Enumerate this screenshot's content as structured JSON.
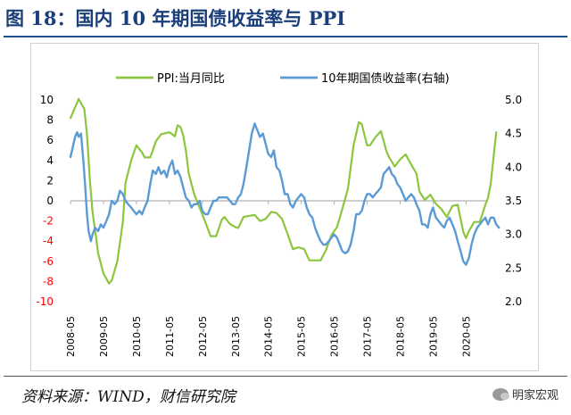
{
  "header": {
    "title": "图 18：国内 10 年期国债收益率与 PPI"
  },
  "footer": {
    "source": "资料来源：WIND，财信研究院",
    "watermark": "明家宏观"
  },
  "chart_data": {
    "type": "line",
    "title": "图 18：国内 10 年期国债收益率与 PPI",
    "legend_position": "top",
    "x_range": [
      2008.33,
      2021.0
    ],
    "x_ticks": [
      "2008-05",
      "2009-05",
      "2010-05",
      "2011-05",
      "2012-05",
      "2013-05",
      "2014-05",
      "2015-05",
      "2016-05",
      "2017-05",
      "2018-05",
      "2019-05",
      "2020-05"
    ],
    "y_left": {
      "range": [
        -10,
        10
      ],
      "ticks": [
        "10",
        "8",
        "6",
        "4",
        "2",
        "0",
        "-2",
        "-4",
        "-6",
        "-8",
        "-10"
      ]
    },
    "y_right": {
      "range": [
        2.0,
        5.0
      ],
      "ticks": [
        "5.0",
        "4.5",
        "4.0",
        "3.5",
        "3.0",
        "2.5",
        "2.0"
      ]
    },
    "colors": {
      "ppi": "#8cc63f",
      "yield": "#5b9bd5",
      "negative_tick": "#ff0000",
      "zero_line": "#b0b0b0"
    },
    "series": [
      {
        "name": "PPI:当月同比",
        "axis": "left",
        "points": [
          [
            2008.33,
            8.2
          ],
          [
            2008.5,
            9.5
          ],
          [
            2008.58,
            10.1
          ],
          [
            2008.75,
            9.1
          ],
          [
            2008.83,
            6.6
          ],
          [
            2008.92,
            2.0
          ],
          [
            2009.0,
            -1.1
          ],
          [
            2009.08,
            -3.0
          ],
          [
            2009.17,
            -5.2
          ],
          [
            2009.33,
            -7.2
          ],
          [
            2009.5,
            -8.2
          ],
          [
            2009.58,
            -7.9
          ],
          [
            2009.75,
            -6.0
          ],
          [
            2009.92,
            -2.1
          ],
          [
            2010.0,
            1.8
          ],
          [
            2010.17,
            4.0
          ],
          [
            2010.33,
            5.5
          ],
          [
            2010.5,
            4.8
          ],
          [
            2010.58,
            4.3
          ],
          [
            2010.75,
            4.3
          ],
          [
            2010.83,
            5.0
          ],
          [
            2010.92,
            5.9
          ],
          [
            2011.08,
            6.6
          ],
          [
            2011.33,
            6.8
          ],
          [
            2011.5,
            6.4
          ],
          [
            2011.58,
            7.5
          ],
          [
            2011.67,
            7.3
          ],
          [
            2011.75,
            6.5
          ],
          [
            2011.83,
            5.0
          ],
          [
            2011.92,
            2.7
          ],
          [
            2012.08,
            0.7
          ],
          [
            2012.25,
            -0.7
          ],
          [
            2012.42,
            -2.1
          ],
          [
            2012.58,
            -3.5
          ],
          [
            2012.75,
            -3.5
          ],
          [
            2012.92,
            -1.9
          ],
          [
            2013.0,
            -1.6
          ],
          [
            2013.17,
            -2.3
          ],
          [
            2013.33,
            -2.6
          ],
          [
            2013.42,
            -2.7
          ],
          [
            2013.58,
            -1.6
          ],
          [
            2013.75,
            -1.5
          ],
          [
            2013.92,
            -1.4
          ],
          [
            2014.08,
            -2.0
          ],
          [
            2014.25,
            -1.8
          ],
          [
            2014.42,
            -1.1
          ],
          [
            2014.58,
            -1.2
          ],
          [
            2014.75,
            -1.8
          ],
          [
            2014.92,
            -3.3
          ],
          [
            2015.08,
            -4.8
          ],
          [
            2015.25,
            -4.6
          ],
          [
            2015.42,
            -4.8
          ],
          [
            2015.58,
            -5.9
          ],
          [
            2015.75,
            -5.9
          ],
          [
            2015.92,
            -5.9
          ],
          [
            2016.08,
            -4.9
          ],
          [
            2016.25,
            -3.4
          ],
          [
            2016.42,
            -2.6
          ],
          [
            2016.58,
            -0.8
          ],
          [
            2016.75,
            1.2
          ],
          [
            2016.92,
            5.5
          ],
          [
            2017.08,
            7.8
          ],
          [
            2017.17,
            7.6
          ],
          [
            2017.33,
            5.5
          ],
          [
            2017.42,
            5.5
          ],
          [
            2017.58,
            6.3
          ],
          [
            2017.75,
            6.9
          ],
          [
            2017.92,
            4.9
          ],
          [
            2018.0,
            4.3
          ],
          [
            2018.17,
            3.4
          ],
          [
            2018.33,
            4.1
          ],
          [
            2018.5,
            4.6
          ],
          [
            2018.67,
            3.6
          ],
          [
            2018.83,
            2.7
          ],
          [
            2018.92,
            0.9
          ],
          [
            2019.08,
            0.1
          ],
          [
            2019.25,
            0.6
          ],
          [
            2019.42,
            -0.3
          ],
          [
            2019.58,
            -0.8
          ],
          [
            2019.75,
            -1.6
          ],
          [
            2019.92,
            -0.5
          ],
          [
            2020.08,
            -0.4
          ],
          [
            2020.25,
            -3.1
          ],
          [
            2020.33,
            -3.7
          ],
          [
            2020.42,
            -3.0
          ],
          [
            2020.58,
            -2.1
          ],
          [
            2020.75,
            -2.1
          ],
          [
            2020.92,
            -0.4
          ],
          [
            2021.0,
            0.3
          ],
          [
            2021.08,
            1.7
          ],
          [
            2021.17,
            4.4
          ],
          [
            2021.25,
            6.8
          ]
        ]
      },
      {
        "name": "10年期国债收益率(右轴)",
        "axis": "right",
        "points": [
          [
            2008.33,
            4.15
          ],
          [
            2008.4,
            4.3
          ],
          [
            2008.47,
            4.45
          ],
          [
            2008.53,
            4.52
          ],
          [
            2008.58,
            4.45
          ],
          [
            2008.65,
            4.5
          ],
          [
            2008.72,
            4.1
          ],
          [
            2008.78,
            3.7
          ],
          [
            2008.83,
            3.3
          ],
          [
            2008.88,
            3.05
          ],
          [
            2008.95,
            2.9
          ],
          [
            2009.0,
            3.0
          ],
          [
            2009.08,
            3.1
          ],
          [
            2009.17,
            3.05
          ],
          [
            2009.25,
            3.15
          ],
          [
            2009.33,
            3.1
          ],
          [
            2009.42,
            3.2
          ],
          [
            2009.5,
            3.3
          ],
          [
            2009.58,
            3.5
          ],
          [
            2009.67,
            3.45
          ],
          [
            2009.75,
            3.5
          ],
          [
            2009.83,
            3.65
          ],
          [
            2009.92,
            3.6
          ],
          [
            2010.0,
            3.5
          ],
          [
            2010.08,
            3.45
          ],
          [
            2010.17,
            3.4
          ],
          [
            2010.25,
            3.35
          ],
          [
            2010.33,
            3.3
          ],
          [
            2010.42,
            3.35
          ],
          [
            2010.5,
            3.3
          ],
          [
            2010.58,
            3.4
          ],
          [
            2010.67,
            3.5
          ],
          [
            2010.75,
            3.75
          ],
          [
            2010.83,
            3.95
          ],
          [
            2010.92,
            3.9
          ],
          [
            2011.0,
            4.0
          ],
          [
            2011.08,
            3.9
          ],
          [
            2011.17,
            3.95
          ],
          [
            2011.25,
            3.85
          ],
          [
            2011.33,
            4.0
          ],
          [
            2011.42,
            4.1
          ],
          [
            2011.5,
            3.9
          ],
          [
            2011.58,
            3.95
          ],
          [
            2011.67,
            3.85
          ],
          [
            2011.75,
            3.7
          ],
          [
            2011.83,
            3.55
          ],
          [
            2011.92,
            3.5
          ],
          [
            2012.0,
            3.4
          ],
          [
            2012.08,
            3.45
          ],
          [
            2012.17,
            3.45
          ],
          [
            2012.25,
            3.5
          ],
          [
            2012.33,
            3.35
          ],
          [
            2012.42,
            3.3
          ],
          [
            2012.5,
            3.3
          ],
          [
            2012.58,
            3.4
          ],
          [
            2012.67,
            3.5
          ],
          [
            2012.75,
            3.5
          ],
          [
            2012.83,
            3.55
          ],
          [
            2012.92,
            3.55
          ],
          [
            2013.0,
            3.55
          ],
          [
            2013.08,
            3.55
          ],
          [
            2013.17,
            3.5
          ],
          [
            2013.25,
            3.45
          ],
          [
            2013.33,
            3.45
          ],
          [
            2013.42,
            3.55
          ],
          [
            2013.5,
            3.6
          ],
          [
            2013.58,
            3.75
          ],
          [
            2013.67,
            4.0
          ],
          [
            2013.75,
            4.25
          ],
          [
            2013.83,
            4.5
          ],
          [
            2013.92,
            4.65
          ],
          [
            2014.0,
            4.55
          ],
          [
            2014.08,
            4.45
          ],
          [
            2014.17,
            4.5
          ],
          [
            2014.25,
            4.35
          ],
          [
            2014.33,
            4.2
          ],
          [
            2014.42,
            4.15
          ],
          [
            2014.5,
            4.25
          ],
          [
            2014.58,
            4.0
          ],
          [
            2014.67,
            3.95
          ],
          [
            2014.75,
            3.8
          ],
          [
            2014.83,
            3.6
          ],
          [
            2014.92,
            3.6
          ],
          [
            2015.0,
            3.45
          ],
          [
            2015.08,
            3.4
          ],
          [
            2015.17,
            3.5
          ],
          [
            2015.25,
            3.55
          ],
          [
            2015.33,
            3.6
          ],
          [
            2015.42,
            3.55
          ],
          [
            2015.5,
            3.4
          ],
          [
            2015.58,
            3.3
          ],
          [
            2015.67,
            3.25
          ],
          [
            2015.75,
            3.1
          ],
          [
            2015.83,
            3.0
          ],
          [
            2015.92,
            2.9
          ],
          [
            2016.0,
            2.85
          ],
          [
            2016.08,
            2.85
          ],
          [
            2016.17,
            2.9
          ],
          [
            2016.25,
            2.95
          ],
          [
            2016.33,
            3.0
          ],
          [
            2016.42,
            2.95
          ],
          [
            2016.5,
            2.85
          ],
          [
            2016.58,
            2.75
          ],
          [
            2016.67,
            2.72
          ],
          [
            2016.75,
            2.75
          ],
          [
            2016.83,
            2.85
          ],
          [
            2016.92,
            3.05
          ],
          [
            2017.0,
            3.3
          ],
          [
            2017.08,
            3.3
          ],
          [
            2017.17,
            3.35
          ],
          [
            2017.25,
            3.5
          ],
          [
            2017.33,
            3.6
          ],
          [
            2017.42,
            3.6
          ],
          [
            2017.5,
            3.55
          ],
          [
            2017.58,
            3.6
          ],
          [
            2017.67,
            3.65
          ],
          [
            2017.75,
            3.7
          ],
          [
            2017.83,
            3.9
          ],
          [
            2017.92,
            3.95
          ],
          [
            2018.0,
            4.0
          ],
          [
            2018.08,
            3.9
          ],
          [
            2018.17,
            3.85
          ],
          [
            2018.25,
            3.75
          ],
          [
            2018.33,
            3.7
          ],
          [
            2018.42,
            3.6
          ],
          [
            2018.5,
            3.5
          ],
          [
            2018.58,
            3.55
          ],
          [
            2018.67,
            3.6
          ],
          [
            2018.75,
            3.55
          ],
          [
            2018.83,
            3.45
          ],
          [
            2018.92,
            3.35
          ],
          [
            2019.0,
            3.15
          ],
          [
            2019.08,
            3.15
          ],
          [
            2019.17,
            3.1
          ],
          [
            2019.25,
            3.3
          ],
          [
            2019.33,
            3.4
          ],
          [
            2019.42,
            3.25
          ],
          [
            2019.5,
            3.2
          ],
          [
            2019.58,
            3.15
          ],
          [
            2019.67,
            3.1
          ],
          [
            2019.75,
            3.2
          ],
          [
            2019.83,
            3.25
          ],
          [
            2019.92,
            3.15
          ],
          [
            2020.0,
            3.05
          ],
          [
            2020.08,
            2.9
          ],
          [
            2020.17,
            2.75
          ],
          [
            2020.25,
            2.6
          ],
          [
            2020.33,
            2.55
          ],
          [
            2020.42,
            2.65
          ],
          [
            2020.5,
            2.85
          ],
          [
            2020.58,
            3.0
          ],
          [
            2020.67,
            3.1
          ],
          [
            2020.75,
            3.15
          ],
          [
            2020.83,
            3.2
          ],
          [
            2020.92,
            3.25
          ],
          [
            2021.0,
            3.15
          ],
          [
            2021.08,
            3.25
          ],
          [
            2021.17,
            3.25
          ],
          [
            2021.25,
            3.15
          ],
          [
            2021.33,
            3.1
          ]
        ]
      }
    ]
  }
}
